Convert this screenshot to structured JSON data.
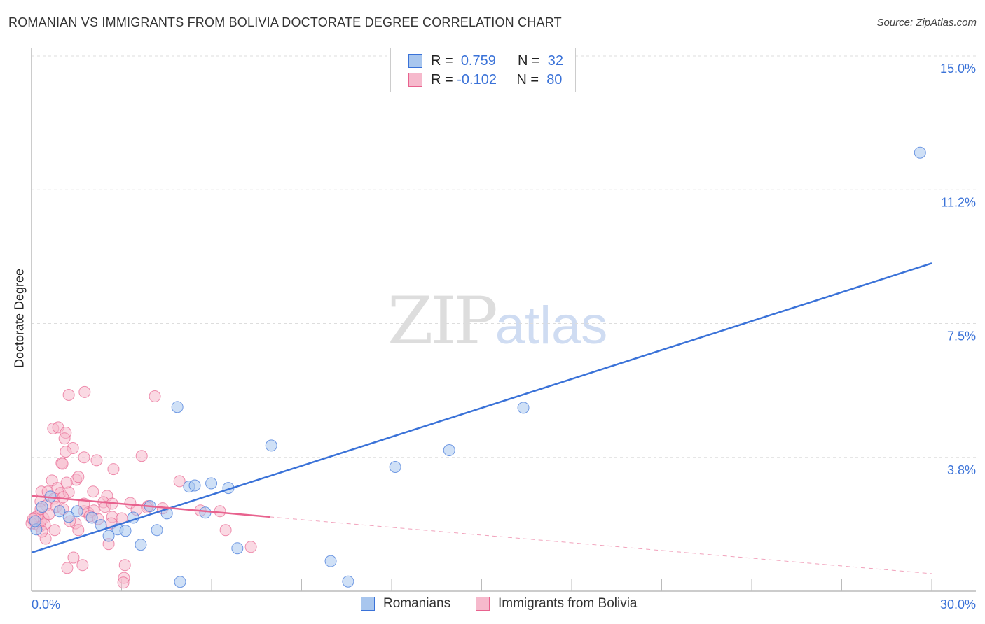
{
  "title": "ROMANIAN VS IMMIGRANTS FROM BOLIVIA DOCTORATE DEGREE CORRELATION CHART",
  "source": "Source: ZipAtlas.com",
  "watermark": "ZIPatlas",
  "legend": {
    "r_label": "R =",
    "n_label": "N =",
    "rows": [
      {
        "r": "0.759",
        "n": "32"
      },
      {
        "r": "-0.102",
        "n": "80"
      }
    ]
  },
  "colors": {
    "blue": "#3a72d8",
    "blue_fill": "#a8c6ee",
    "pink": "#e8628e",
    "pink_fill": "#f6b9cc"
  },
  "chart_data": {
    "type": "scatter",
    "title": "ROMANIAN VS IMMIGRANTS FROM BOLIVIA DOCTORATE DEGREE CORRELATION CHART",
    "xlabel": "",
    "ylabel": "Doctorate Degree",
    "xlim": [
      0,
      30
    ],
    "ylim": [
      0,
      15
    ],
    "x_tick_labels": [
      "0.0%",
      "30.0%"
    ],
    "y_ticks": [
      3.75,
      7.5,
      11.25,
      15
    ],
    "y_tick_labels": [
      "3.8%",
      "7.5%",
      "11.2%",
      "15.0%"
    ],
    "legend_position": "top-center",
    "series": [
      {
        "name": "Romanians",
        "R": 0.759,
        "N": 32,
        "trend": {
          "x": [
            0,
            30
          ],
          "y": [
            1.08,
            9.19
          ]
        },
        "points": [
          [
            29.61,
            12.29
          ],
          [
            16.39,
            5.14
          ],
          [
            13.92,
            3.95
          ],
          [
            12.12,
            3.48
          ],
          [
            7.99,
            4.08
          ],
          [
            4.86,
            5.16
          ],
          [
            5.25,
            2.93
          ],
          [
            5.44,
            2.96
          ],
          [
            5.99,
            3.02
          ],
          [
            6.56,
            2.89
          ],
          [
            3.95,
            2.38
          ],
          [
            4.51,
            2.18
          ],
          [
            5.79,
            2.2
          ],
          [
            3.39,
            2.06
          ],
          [
            2.87,
            1.73
          ],
          [
            3.13,
            1.69
          ],
          [
            4.18,
            1.71
          ],
          [
            3.64,
            1.3
          ],
          [
            2.57,
            1.55
          ],
          [
            2.31,
            1.85
          ],
          [
            2.01,
            2.06
          ],
          [
            1.52,
            2.24
          ],
          [
            1.24,
            2.08
          ],
          [
            0.93,
            2.24
          ],
          [
            0.35,
            2.36
          ],
          [
            0.63,
            2.65
          ],
          [
            0.16,
            1.73
          ],
          [
            6.86,
            1.2
          ],
          [
            9.97,
            0.84
          ],
          [
            10.55,
            0.27
          ],
          [
            4.95,
            0.26
          ],
          [
            0.12,
            1.96
          ]
        ]
      },
      {
        "name": "Immigrants from Bolivia",
        "R": -0.102,
        "N": 80,
        "trend": {
          "x": [
            0,
            7.94
          ],
          "y": [
            2.67,
            2.08
          ]
        },
        "trend_extended": {
          "x": [
            7.94,
            30
          ],
          "y": [
            2.08,
            0.49
          ]
        },
        "points": [
          [
            1.24,
            5.5
          ],
          [
            1.77,
            5.58
          ],
          [
            4.11,
            5.46
          ],
          [
            0.72,
            4.56
          ],
          [
            0.89,
            4.59
          ],
          [
            1.14,
            4.44
          ],
          [
            1.1,
            4.28
          ],
          [
            1.38,
            4.01
          ],
          [
            1.14,
            3.91
          ],
          [
            1.0,
            3.59
          ],
          [
            1.03,
            3.57
          ],
          [
            1.75,
            3.75
          ],
          [
            2.17,
            3.67
          ],
          [
            2.73,
            3.42
          ],
          [
            3.67,
            3.79
          ],
          [
            4.93,
            3.08
          ],
          [
            0.68,
            3.1
          ],
          [
            1.49,
            3.12
          ],
          [
            1.56,
            3.2
          ],
          [
            0.33,
            2.79
          ],
          [
            0.54,
            2.79
          ],
          [
            0.86,
            2.89
          ],
          [
            0.96,
            2.75
          ],
          [
            1.24,
            2.77
          ],
          [
            0.75,
            2.59
          ],
          [
            1.05,
            2.63
          ],
          [
            2.05,
            2.79
          ],
          [
            2.52,
            2.67
          ],
          [
            2.4,
            2.49
          ],
          [
            0.3,
            2.51
          ],
          [
            3.29,
            2.47
          ],
          [
            3.88,
            2.38
          ],
          [
            4.37,
            2.32
          ],
          [
            5.63,
            2.26
          ],
          [
            6.28,
            2.24
          ],
          [
            0.49,
            2.4
          ],
          [
            0.82,
            2.36
          ],
          [
            1.75,
            2.24
          ],
          [
            1.89,
            2.2
          ],
          [
            2.08,
            2.26
          ],
          [
            2.69,
            2.08
          ],
          [
            3.01,
            2.04
          ],
          [
            1.94,
            2.1
          ],
          [
            0.23,
            2.1
          ],
          [
            0.4,
            2.04
          ],
          [
            0.07,
            1.96
          ],
          [
            0.16,
            1.87
          ],
          [
            0.28,
            1.81
          ],
          [
            0.44,
            1.87
          ],
          [
            1.47,
            1.9
          ],
          [
            2.66,
            1.9
          ],
          [
            0.77,
            1.71
          ],
          [
            1.56,
            1.71
          ],
          [
            0.47,
            1.47
          ],
          [
            2.57,
            1.32
          ],
          [
            6.47,
            1.71
          ],
          [
            7.31,
            1.24
          ],
          [
            1.4,
            0.94
          ],
          [
            1.7,
            0.73
          ],
          [
            1.19,
            0.65
          ],
          [
            3.11,
            0.73
          ],
          [
            3.08,
            0.37
          ],
          [
            3.06,
            0.24
          ],
          [
            0.12,
            2.06
          ],
          [
            0.3,
            1.96
          ],
          [
            0.19,
            2.1
          ],
          [
            0.58,
            2.16
          ],
          [
            1.28,
            1.96
          ],
          [
            2.22,
            2.02
          ],
          [
            3.5,
            2.28
          ],
          [
            2.45,
            2.36
          ],
          [
            3.85,
            2.34
          ],
          [
            1.05,
            2.3
          ],
          [
            0.3,
            2.3
          ],
          [
            0.0,
            1.9
          ],
          [
            0.05,
            2.02
          ],
          [
            0.35,
            1.67
          ],
          [
            2.69,
            2.45
          ],
          [
            1.75,
            2.45
          ],
          [
            1.17,
            3.04
          ]
        ]
      }
    ]
  }
}
